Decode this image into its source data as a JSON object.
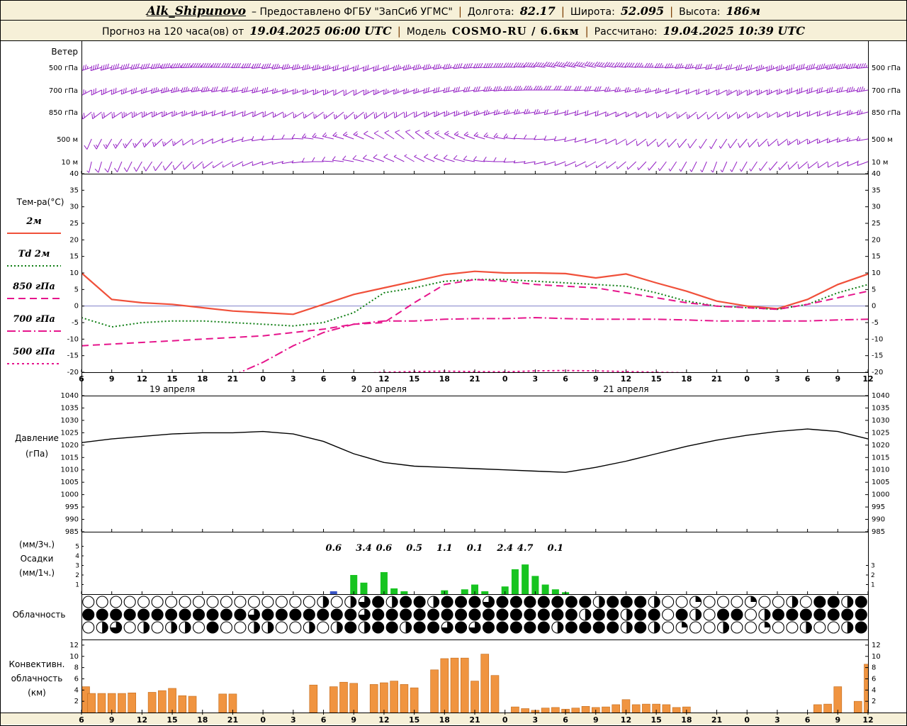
{
  "header": {
    "station": "Alk_Shipunovo",
    "provider": "– Предоставлено ФГБУ \"ЗапСиб УГМС\"",
    "sep": "|",
    "lon_label": "Долгота:",
    "lon": "82.17",
    "lat_label": "Широта:",
    "lat": "52.095",
    "alt_label": "Высота:",
    "alt": "186м",
    "forecast_label": "Прогноз на 120 часа(ов) от",
    "forecast_start": "19.04.2025 06:00 UTC",
    "model_label": "Модель",
    "model": "COSMO-RU / 6.6км",
    "calc_label": "Рассчитано:",
    "calc_time": "19.04.2025 10:39 UTC"
  },
  "chart_data": [
    {
      "id": "wind",
      "type": "wind-barbs",
      "title": "Ветер",
      "color": "#9420c4",
      "levels": [
        "500 гПа",
        "700 гПа",
        "850 гПа",
        "500 м",
        "10 м"
      ],
      "hours_step": 3,
      "barbs": {
        "500 гПа": [
          [
            250,
            35
          ],
          [
            255,
            40
          ],
          [
            260,
            40
          ],
          [
            265,
            45
          ],
          [
            270,
            45
          ],
          [
            270,
            40
          ],
          [
            265,
            40
          ],
          [
            260,
            35
          ],
          [
            255,
            35
          ],
          [
            250,
            30
          ],
          [
            250,
            30
          ],
          [
            255,
            35
          ],
          [
            260,
            35
          ],
          [
            265,
            40
          ],
          [
            270,
            40
          ],
          [
            275,
            45
          ],
          [
            280,
            45
          ],
          [
            280,
            40
          ],
          [
            275,
            40
          ],
          [
            270,
            35
          ],
          [
            265,
            35
          ],
          [
            260,
            30
          ],
          [
            255,
            30
          ],
          [
            250,
            35
          ],
          [
            255,
            40
          ],
          [
            260,
            45
          ],
          [
            265,
            45
          ]
        ],
        "700 гПа": [
          [
            240,
            25
          ],
          [
            245,
            30
          ],
          [
            250,
            30
          ],
          [
            255,
            35
          ],
          [
            260,
            35
          ],
          [
            260,
            30
          ],
          [
            255,
            30
          ],
          [
            250,
            25
          ],
          [
            245,
            25
          ],
          [
            240,
            20
          ],
          [
            245,
            25
          ],
          [
            250,
            25
          ],
          [
            255,
            30
          ],
          [
            260,
            30
          ],
          [
            265,
            35
          ],
          [
            270,
            35
          ],
          [
            270,
            30
          ],
          [
            265,
            30
          ],
          [
            260,
            25
          ],
          [
            255,
            25
          ],
          [
            250,
            20
          ],
          [
            245,
            20
          ],
          [
            240,
            25
          ],
          [
            245,
            25
          ],
          [
            250,
            30
          ],
          [
            255,
            30
          ],
          [
            260,
            35
          ]
        ],
        "850 гПа": [
          [
            230,
            20
          ],
          [
            235,
            20
          ],
          [
            240,
            25
          ],
          [
            245,
            25
          ],
          [
            250,
            25
          ],
          [
            250,
            20
          ],
          [
            245,
            20
          ],
          [
            240,
            15
          ],
          [
            235,
            15
          ],
          [
            230,
            15
          ],
          [
            235,
            20
          ],
          [
            240,
            20
          ],
          [
            245,
            25
          ],
          [
            250,
            25
          ],
          [
            255,
            25
          ],
          [
            260,
            25
          ],
          [
            255,
            20
          ],
          [
            250,
            20
          ],
          [
            245,
            15
          ],
          [
            240,
            15
          ],
          [
            235,
            15
          ],
          [
            230,
            10
          ],
          [
            235,
            15
          ],
          [
            240,
            15
          ],
          [
            245,
            20
          ],
          [
            250,
            20
          ],
          [
            255,
            25
          ]
        ],
        "500 м": [
          [
            200,
            10
          ],
          [
            210,
            15
          ],
          [
            220,
            15
          ],
          [
            230,
            15
          ],
          [
            240,
            10
          ],
          [
            250,
            10
          ],
          [
            260,
            10
          ],
          [
            270,
            10
          ],
          [
            280,
            15
          ],
          [
            290,
            15
          ],
          [
            300,
            10
          ],
          [
            310,
            10
          ],
          [
            300,
            15
          ],
          [
            290,
            15
          ],
          [
            280,
            15
          ],
          [
            270,
            10
          ],
          [
            260,
            10
          ],
          [
            250,
            10
          ],
          [
            240,
            10
          ],
          [
            230,
            10
          ],
          [
            220,
            10
          ],
          [
            210,
            5
          ],
          [
            220,
            10
          ],
          [
            230,
            10
          ],
          [
            240,
            15
          ],
          [
            250,
            15
          ],
          [
            260,
            15
          ]
        ],
        "10 м": [
          [
            190,
            5
          ],
          [
            200,
            10
          ],
          [
            210,
            10
          ],
          [
            220,
            10
          ],
          [
            230,
            10
          ],
          [
            240,
            5
          ],
          [
            250,
            5
          ],
          [
            260,
            5
          ],
          [
            270,
            10
          ],
          [
            280,
            10
          ],
          [
            290,
            10
          ],
          [
            300,
            5
          ],
          [
            290,
            10
          ],
          [
            280,
            10
          ],
          [
            270,
            10
          ],
          [
            260,
            5
          ],
          [
            250,
            5
          ],
          [
            240,
            5
          ],
          [
            230,
            5
          ],
          [
            220,
            5
          ],
          [
            210,
            5
          ],
          [
            200,
            5
          ],
          [
            210,
            5
          ],
          [
            220,
            5
          ],
          [
            230,
            10
          ],
          [
            240,
            10
          ],
          [
            250,
            10
          ]
        ]
      }
    },
    {
      "id": "temperature",
      "type": "line",
      "title": "Тем-ра(°C)",
      "ylim": [
        -20,
        40
      ],
      "yticks": [
        40,
        35,
        30,
        25,
        20,
        15,
        10,
        5,
        0,
        -5,
        -10,
        -15,
        -20
      ],
      "x_hours_step": 3,
      "x_tick_labels": [
        "6",
        "9",
        "12",
        "15",
        "18",
        "21",
        "0",
        "3",
        "6",
        "9",
        "12",
        "15",
        "18",
        "21",
        "0",
        "3",
        "6",
        "9",
        "12",
        "15",
        "18",
        "21",
        "0",
        "3",
        "6",
        "9",
        "12"
      ],
      "date_labels": [
        {
          "text": "19 апреля",
          "h": 9
        },
        {
          "text": "20 апреля",
          "h": 30
        },
        {
          "text": "21 апреля",
          "h": 54
        }
      ],
      "zero_line_color": "#8080c8",
      "series": [
        {
          "name": "2м",
          "color": "#f0503a",
          "dash": "solid",
          "width": 2.2,
          "values": [
            10,
            2,
            1,
            0.5,
            -0.5,
            -1.5,
            -2,
            -2.5,
            0.5,
            3.5,
            5.5,
            7.5,
            9.5,
            10.5,
            10,
            10,
            9.8,
            8.5,
            9.7,
            7,
            4.5,
            1.5,
            0,
            -0.8,
            2,
            6.5,
            9.7
          ]
        },
        {
          "name": "Td 2м",
          "color": "#0d7d12",
          "dash": "2,3",
          "width": 2,
          "values": [
            -3.5,
            -6.3,
            -5,
            -4.5,
            -4.5,
            -5,
            -5.5,
            -6,
            -5,
            -2,
            4,
            5.5,
            7.5,
            8,
            8,
            7.5,
            7,
            6.5,
            6,
            4,
            1.5,
            0,
            -0.5,
            -1,
            0.5,
            4,
            6.5
          ]
        },
        {
          "name": "850 гПа",
          "color": "#e6158c",
          "dash": "10,6",
          "width": 2,
          "values": [
            -12,
            -11.5,
            -11,
            -10.5,
            -10,
            -9.5,
            -9,
            -8,
            -7,
            -5.5,
            -5,
            1,
            6.5,
            8,
            7.5,
            6.5,
            6,
            5.5,
            4,
            2.5,
            1,
            0,
            -0.5,
            -1,
            0.5,
            2.5,
            4.5
          ]
        },
        {
          "name": "700 гПа",
          "color": "#e6158c",
          "dash": "12,4,2,4",
          "width": 2,
          "values": [
            null,
            null,
            null,
            null,
            null,
            -21,
            -17,
            -12,
            -8,
            -5.5,
            -4.5,
            -4.5,
            -4,
            -3.8,
            -3.8,
            -3.5,
            -3.8,
            -4,
            -4,
            -4,
            -4.2,
            -4.5,
            -4.5,
            -4.5,
            -4.5,
            -4.2,
            -4
          ]
        },
        {
          "name": "500 гПа",
          "color": "#e6158c",
          "dash": "3,4",
          "width": 2,
          "values": [
            -24,
            -24,
            -23.5,
            -23,
            -23,
            -22.5,
            -22,
            -21.5,
            -21,
            -20.5,
            -20,
            -19.8,
            -19.7,
            -19.8,
            -19.9,
            -19.6,
            -19.5,
            -19.6,
            -19.8,
            -20,
            -20.2,
            -20.5,
            -21,
            -21.5,
            -21.5,
            -21,
            -20.5
          ]
        }
      ]
    },
    {
      "id": "pressure",
      "type": "line",
      "title_lines": [
        "Давление",
        "(гПа)"
      ],
      "ylim": [
        985,
        1040
      ],
      "yticks": [
        1040,
        1035,
        1030,
        1025,
        1020,
        1015,
        1010,
        1005,
        1000,
        995,
        990,
        985
      ],
      "color": "#000000",
      "values": [
        1021,
        1022.5,
        1023.5,
        1024.5,
        1025,
        1025,
        1025.5,
        1024.5,
        1021.5,
        1016.5,
        1013,
        1011.5,
        1011,
        1010.5,
        1010,
        1009.5,
        1009,
        1011,
        1013.5,
        1016.5,
        1019.5,
        1022,
        1024,
        1025.5,
        1026.5,
        1025.5,
        1022.5
      ]
    },
    {
      "id": "precipitation",
      "type": "bar",
      "title_lines": [
        "(мм/3ч.)",
        "Осадки",
        "(мм/1ч.)"
      ],
      "bar_color": "#17c420",
      "yticks_left": [
        5,
        4,
        3,
        2,
        1
      ],
      "yticks_right": [
        3,
        2,
        1
      ],
      "labels_3h": [
        {
          "h": 25,
          "text": "0.6"
        },
        {
          "h": 28,
          "text": "3.4"
        },
        {
          "h": 30,
          "text": "0.6"
        },
        {
          "h": 33,
          "text": "0.5"
        },
        {
          "h": 36,
          "text": "1.1"
        },
        {
          "h": 39,
          "text": "0.1"
        },
        {
          "h": 42,
          "text": "2.4"
        },
        {
          "h": 44,
          "text": "4.7"
        },
        {
          "h": 47,
          "text": "0.1"
        }
      ],
      "bars_1h": [
        {
          "h": 25,
          "v": 0.3,
          "color": "#3a56c8"
        },
        {
          "h": 27,
          "v": 2.0
        },
        {
          "h": 28,
          "v": 1.2
        },
        {
          "h": 30,
          "v": 2.3
        },
        {
          "h": 31,
          "v": 0.6
        },
        {
          "h": 32,
          "v": 0.3
        },
        {
          "h": 36,
          "v": 0.4
        },
        {
          "h": 38,
          "v": 0.5
        },
        {
          "h": 39,
          "v": 1.0
        },
        {
          "h": 40,
          "v": 0.3
        },
        {
          "h": 42,
          "v": 0.8
        },
        {
          "h": 43,
          "v": 2.6
        },
        {
          "h": 44,
          "v": 3.1
        },
        {
          "h": 45,
          "v": 1.9
        },
        {
          "h": 46,
          "v": 1.0
        },
        {
          "h": 47,
          "v": 0.5
        },
        {
          "h": 48,
          "v": 0.2
        }
      ]
    },
    {
      "id": "cloudiness",
      "type": "symbols",
      "title": "Облачность",
      "okta_scale": 4,
      "rows": [
        [
          0,
          0,
          0,
          0,
          0,
          0,
          0,
          0,
          0,
          0,
          0,
          0,
          0,
          0,
          0,
          0,
          0,
          2,
          0,
          2,
          3,
          4,
          2,
          4,
          4,
          2,
          4,
          4,
          4,
          3,
          4,
          4,
          4,
          4,
          4,
          4,
          4,
          2,
          4,
          4,
          4,
          2,
          0,
          0,
          1,
          0,
          0,
          0,
          1,
          0,
          0,
          2,
          0,
          4,
          4,
          2,
          4
        ],
        [
          4,
          4,
          4,
          4,
          4,
          4,
          4,
          4,
          4,
          4,
          4,
          4,
          3,
          4,
          4,
          4,
          4,
          4,
          4,
          4,
          3,
          4,
          4,
          4,
          4,
          4,
          4,
          4,
          4,
          4,
          4,
          4,
          4,
          4,
          4,
          4,
          2,
          4,
          4,
          2,
          4,
          4,
          0,
          4,
          2,
          0,
          4,
          4,
          0,
          2,
          4,
          4,
          4,
          4,
          4,
          4,
          4
        ],
        [
          0,
          2,
          3,
          0,
          2,
          0,
          2,
          2,
          0,
          4,
          0,
          0,
          2,
          2,
          0,
          0,
          2,
          0,
          2,
          4,
          2,
          4,
          4,
          2,
          4,
          4,
          3,
          4,
          3,
          4,
          4,
          4,
          4,
          4,
          2,
          4,
          4,
          4,
          4,
          2,
          4,
          2,
          0,
          1,
          0,
          0,
          2,
          0,
          0,
          1,
          0,
          0,
          2,
          0,
          0,
          2,
          4
        ]
      ]
    },
    {
      "id": "convective",
      "type": "bar",
      "title_lines": [
        "Конвективн.",
        "облачность",
        "(км)"
      ],
      "ylim": [
        0,
        13
      ],
      "yticks": [
        12,
        10,
        8,
        6,
        4,
        2
      ],
      "bar_color": "#f09440",
      "values_1h": [
        4.6,
        3.4,
        3.4,
        3.4,
        3.4,
        3.5,
        0,
        3.6,
        3.9,
        4.3,
        3.0,
        2.9,
        0,
        0,
        3.3,
        3.3,
        0,
        0,
        0,
        0,
        0,
        0,
        0,
        4.9,
        0,
        4.6,
        5.4,
        5.2,
        0,
        5.0,
        5.3,
        5.6,
        5.0,
        4.4,
        0,
        7.6,
        9.6,
        9.7,
        9.7,
        5.6,
        10.4,
        6.6,
        0,
        1.0,
        0.7,
        0.4,
        0.8,
        0.9,
        0.6,
        0.8,
        1.1,
        0.9,
        1.0,
        1.4,
        2.3,
        1.4,
        1.5,
        1.5,
        1.4,
        0.9,
        1.0,
        0,
        0,
        0,
        0,
        0,
        0,
        0,
        0,
        0,
        0,
        0,
        0,
        1.4,
        1.5,
        4.6,
        0,
        2.0,
        8.6
      ]
    }
  ]
}
